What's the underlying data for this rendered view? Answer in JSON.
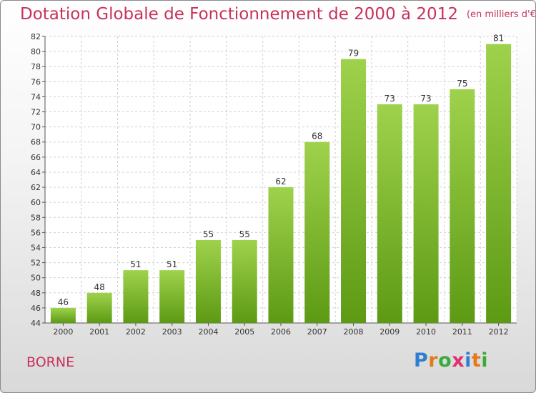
{
  "title": "Dotation Globale de Fonctionnement de 2000 à 2012",
  "unit": "(en milliers d'€)",
  "commune": "BORNE",
  "logo": {
    "text": "Proxiti",
    "colors": [
      "#2f7fd0",
      "#e27a1e",
      "#3aaa3a",
      "#e03070",
      "#2f7fd0",
      "#e27a1e",
      "#3aaa3a"
    ]
  },
  "colors": {
    "bar_top": "#9fd24c",
    "bar_bottom": "#5d9a14",
    "title": "#c8325a",
    "grid": "#d0d0d0"
  },
  "chart_data": {
    "type": "bar",
    "title": "Dotation Globale de Fonctionnement de 2000 à 2012",
    "subtitle": "(en milliers d'€)",
    "categories": [
      "2000",
      "2001",
      "2002",
      "2003",
      "2004",
      "2005",
      "2006",
      "2007",
      "2008",
      "2009",
      "2010",
      "2011",
      "2012"
    ],
    "values": [
      46,
      48,
      51,
      51,
      55,
      55,
      62,
      68,
      79,
      73,
      73,
      75,
      81
    ],
    "ylim": [
      44,
      82
    ],
    "yticks": [
      44,
      46,
      48,
      50,
      52,
      54,
      56,
      58,
      60,
      62,
      64,
      66,
      68,
      70,
      72,
      74,
      76,
      78,
      80,
      82
    ],
    "grid": true,
    "data_labels": true
  }
}
